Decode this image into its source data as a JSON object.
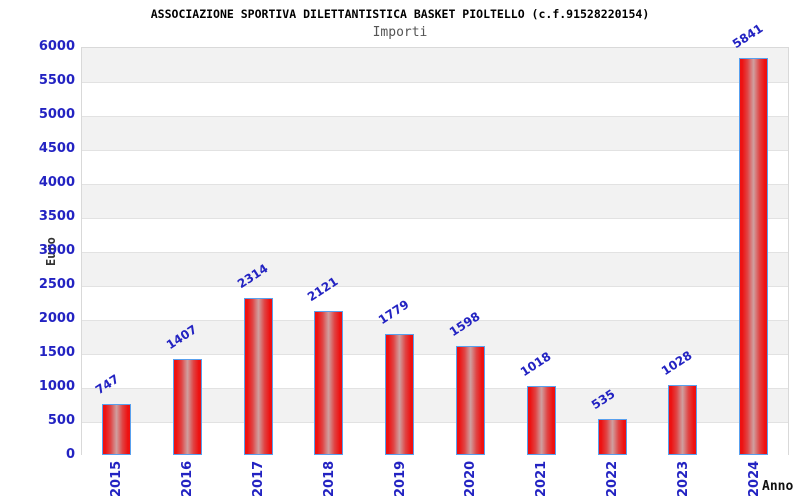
{
  "chart_data": {
    "type": "bar",
    "title": "ASSOCIAZIONE SPORTIVA DILETTANTISTICA BASKET PIOLTELLO (c.f.91528220154)",
    "subtitle": "Importi",
    "xlabel": "Anno",
    "ylabel": "Euro",
    "categories": [
      "2015",
      "2016",
      "2017",
      "2018",
      "2019",
      "2020",
      "2021",
      "2022",
      "2023",
      "2024"
    ],
    "values": [
      747,
      1407,
      2314,
      2121,
      1779,
      1598,
      1018,
      535,
      1028,
      5841
    ],
    "ylim": [
      0,
      6000
    ],
    "ytick_step": 500,
    "yticks": [
      0,
      500,
      1000,
      1500,
      2000,
      2500,
      3000,
      3500,
      4000,
      4500,
      5000,
      5500,
      6000
    ],
    "grid": "horizontal alternating bands every 500",
    "legend": "none"
  },
  "colors": {
    "bar_edge_red": "#ee1111",
    "bar_mid_red": "#e04444",
    "bar_center_light": "#cfa0a0",
    "bar_border_blue": "#58a0ee",
    "label_blue": "#2323c2",
    "band_gray": "#f2f2f2",
    "band_white": "#ffffff",
    "gridline_gray": "#e2e2e2",
    "title_black": "#000000",
    "subtitle_gray": "#555555"
  }
}
